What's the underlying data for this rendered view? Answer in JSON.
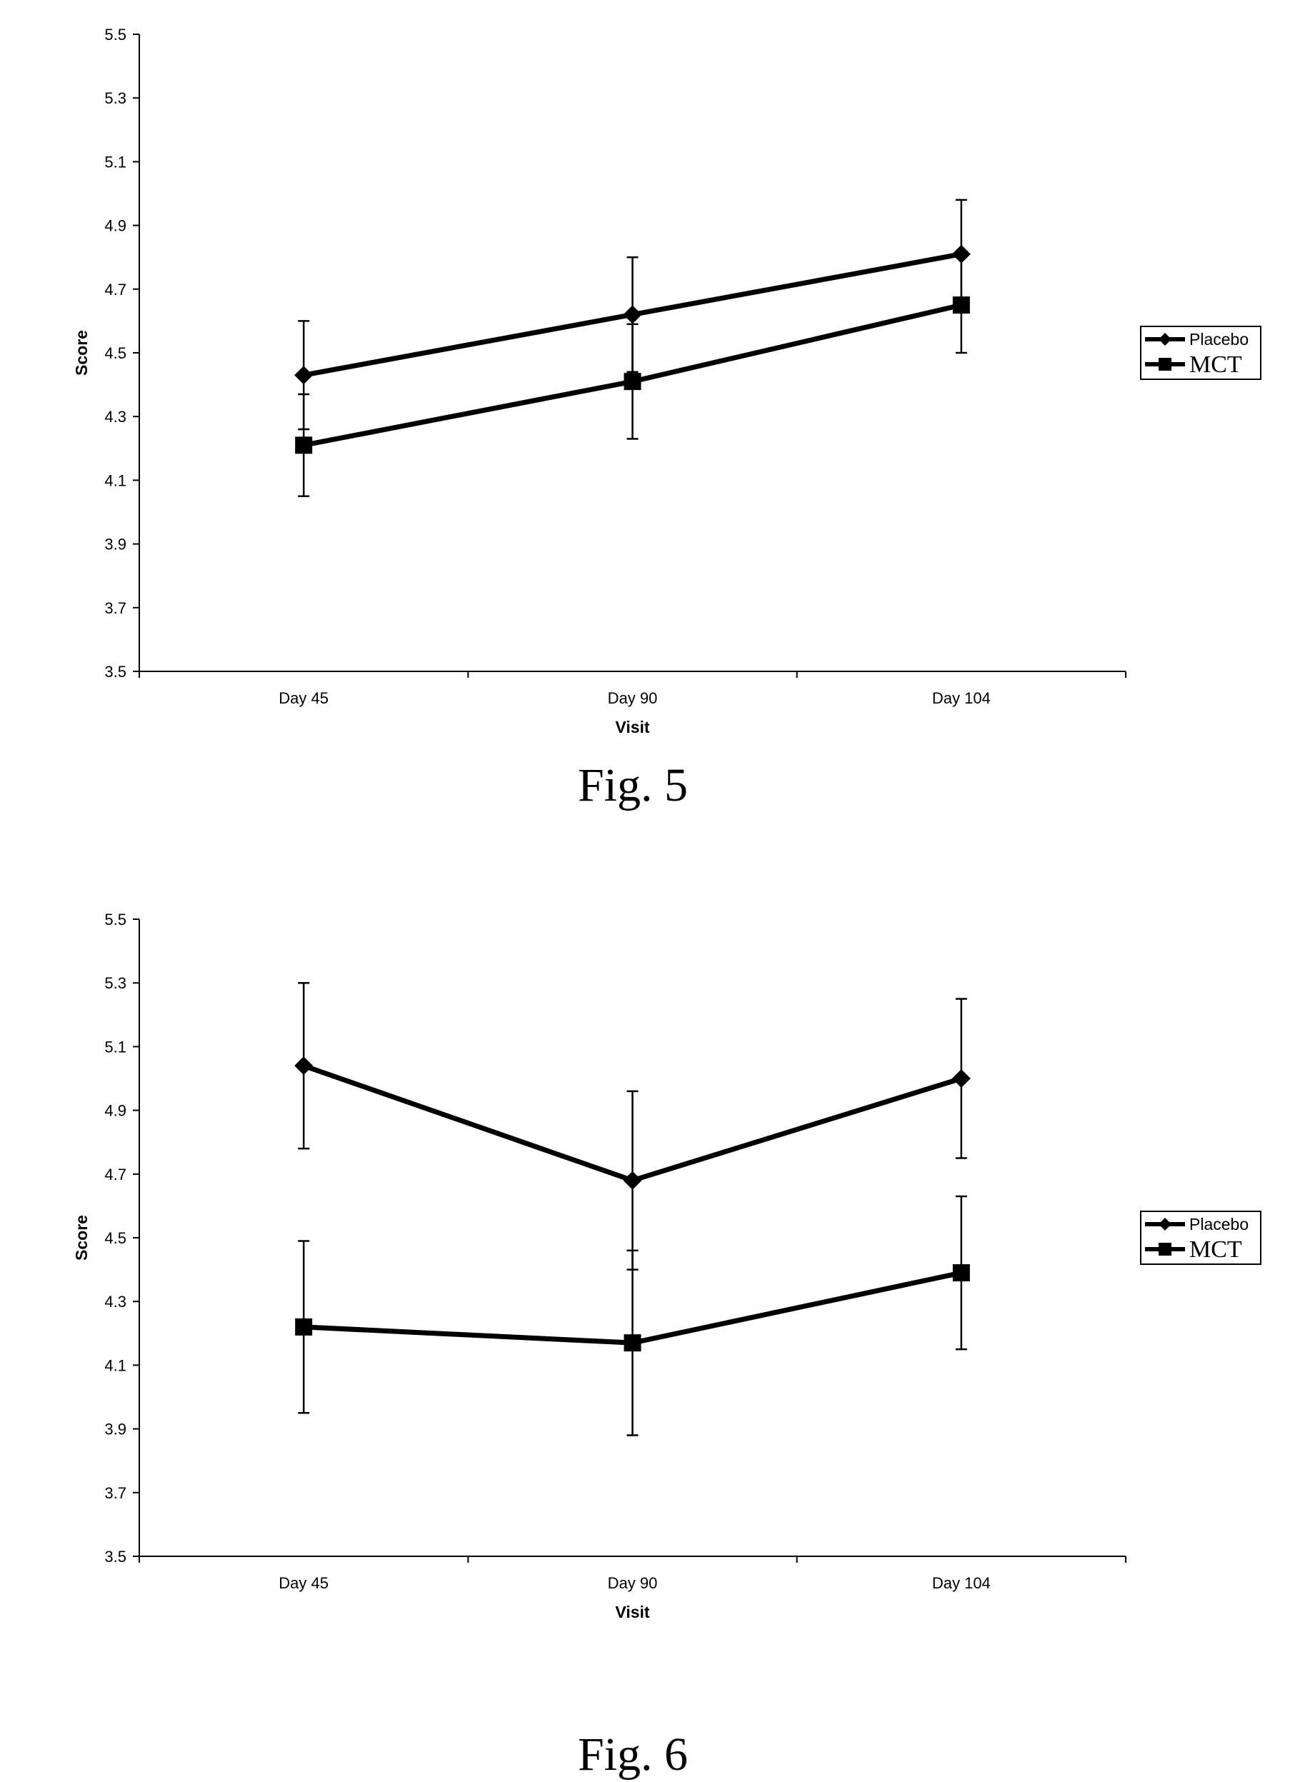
{
  "chart_data": [
    {
      "type": "line",
      "caption": "Fig. 5",
      "categories": [
        "Day 45",
        "Day 90",
        "Day 104"
      ],
      "xlabel": "Visit",
      "ylabel": "Score",
      "ylim": [
        3.5,
        5.5
      ],
      "yticks": [
        "3.5",
        "3.7",
        "3.9",
        "4.1",
        "4.3",
        "4.5",
        "4.7",
        "4.9",
        "5.1",
        "5.3",
        "5.5"
      ],
      "grid": false,
      "legend_position": "right",
      "series": [
        {
          "name": "Placebo",
          "marker": "diamond",
          "values": [
            4.43,
            4.62,
            4.81
          ],
          "error": [
            0.17,
            0.18,
            0.17
          ]
        },
        {
          "name": "MCT",
          "marker": "square",
          "values": [
            4.21,
            4.41,
            4.65
          ],
          "error": [
            0.16,
            0.18,
            0.15
          ]
        }
      ]
    },
    {
      "type": "line",
      "caption": "Fig. 6",
      "categories": [
        "Day 45",
        "Day 90",
        "Day 104"
      ],
      "xlabel": "Visit",
      "ylabel": "Score",
      "ylim": [
        3.5,
        5.5
      ],
      "yticks": [
        "3.5",
        "3.7",
        "3.9",
        "4.1",
        "4.3",
        "4.5",
        "4.7",
        "4.9",
        "5.1",
        "5.3",
        "5.5"
      ],
      "grid": false,
      "legend_position": "right",
      "series": [
        {
          "name": "Placebo",
          "marker": "diamond",
          "values": [
            5.04,
            4.68,
            5.0
          ],
          "error": [
            0.26,
            0.28,
            0.25
          ]
        },
        {
          "name": "MCT",
          "marker": "square",
          "values": [
            4.22,
            4.17,
            4.39
          ],
          "error": [
            0.27,
            0.29,
            0.24
          ]
        }
      ]
    }
  ]
}
